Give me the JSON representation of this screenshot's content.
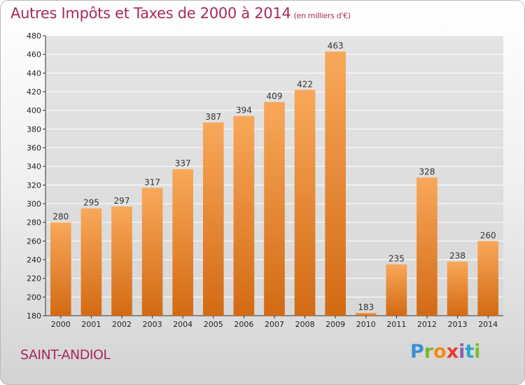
{
  "title": "Autres Impôts et Taxes de 2000 à 2014",
  "subtitle": "(en milliers d'€)",
  "city": "SAINT-ANDIOL",
  "logo_text": "Proxiti",
  "colors": {
    "title": "#a72a5f",
    "bar_light": "#f8a85a",
    "bar_dark": "#d36a13"
  },
  "chart_data": {
    "type": "bar",
    "title": "Autres Impôts et Taxes de 2000 à 2014",
    "subtitle": "(en milliers d'€)",
    "xlabel": "",
    "ylabel": "",
    "categories": [
      "2000",
      "2001",
      "2002",
      "2003",
      "2004",
      "2005",
      "2006",
      "2007",
      "2008",
      "2009",
      "2010",
      "2011",
      "2012",
      "2013",
      "2014"
    ],
    "values": [
      280,
      295,
      297,
      317,
      337,
      387,
      394,
      409,
      422,
      463,
      183,
      235,
      328,
      238,
      260
    ],
    "ylim": [
      180,
      480
    ],
    "yticks": [
      180,
      200,
      220,
      240,
      260,
      280,
      300,
      320,
      340,
      360,
      380,
      400,
      420,
      440,
      460,
      480
    ],
    "grid": true,
    "legend": "none"
  }
}
